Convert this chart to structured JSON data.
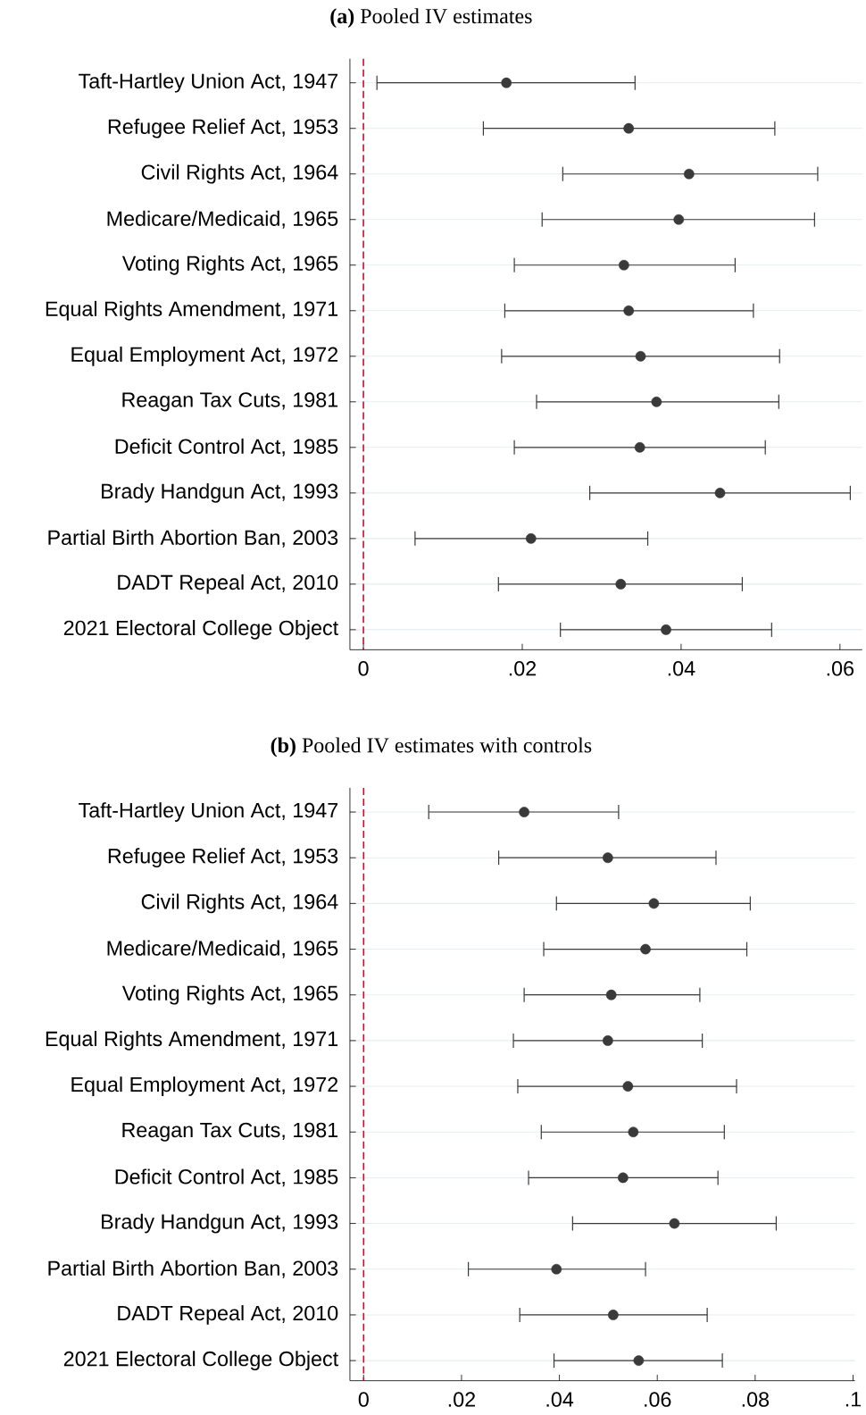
{
  "chart_data": [
    {
      "type": "scatter",
      "orientation": "horizontal",
      "title": "**(a)** Pooled IV estimates",
      "categories": [
        "Taft-Hartley Union Act, 1947",
        "Refugee Relief Act, 1953",
        "Civil Rights Act, 1964",
        "Medicare/Medicaid, 1965",
        "Voting Rights Act, 1965",
        "Equal Rights Amendment, 1971",
        "Equal Employment Act, 1972",
        "Reagan Tax Cuts, 1981",
        "Deficit Control Act, 1985",
        "Brady Handgun Act, 1993",
        "Partial Birth Abortion Ban, 2003",
        "DADT Repeal Act, 2010",
        "2021 Electoral College Object"
      ],
      "values": [
        0.018,
        0.0334,
        0.041,
        0.0397,
        0.0328,
        0.0334,
        0.0349,
        0.0369,
        0.0348,
        0.0449,
        0.0211,
        0.0324,
        0.0381
      ],
      "errors": [
        [
          0.0017,
          0.0342
        ],
        [
          0.0151,
          0.0518
        ],
        [
          0.0251,
          0.0572
        ],
        [
          0.0225,
          0.0568
        ],
        [
          0.019,
          0.0468
        ],
        [
          0.0178,
          0.0491
        ],
        [
          0.0174,
          0.0524
        ],
        [
          0.0218,
          0.0523
        ],
        [
          0.019,
          0.0506
        ],
        [
          0.0285,
          0.0613
        ],
        [
          0.0065,
          0.0358
        ],
        [
          0.017,
          0.0477
        ],
        [
          0.0248,
          0.0514
        ]
      ],
      "color": "#3a3a3a",
      "grid": "y",
      "xlim": [
        -0.0017,
        0.0628
      ],
      "xticks": [
        0,
        {
          "value": 0.02,
          "label": ".02"
        },
        {
          "value": 0.04,
          "label": ".04"
        },
        {
          "value": 0.06,
          "label": ".06"
        }
      ],
      "ref_lines": [
        {
          "axis": "x",
          "value": 0,
          "color": "#c8102e",
          "line_style": "dashed"
        }
      ]
    },
    {
      "type": "scatter",
      "orientation": "horizontal",
      "title": "**(b)** Pooled IV estimates with controls",
      "categories": [
        "Taft-Hartley Union Act, 1947",
        "Refugee Relief Act, 1953",
        "Civil Rights Act, 1964",
        "Medicare/Medicaid, 1965",
        "Voting Rights Act, 1965",
        "Equal Rights Amendment, 1971",
        "Equal Employment Act, 1972",
        "Reagan Tax Cuts, 1981",
        "Deficit Control Act, 1985",
        "Brady Handgun Act, 1993",
        "Partial Birth Abortion Ban, 2003",
        "DADT Repeal Act, 2010",
        "2021 Electoral College Object"
      ],
      "values": [
        0.0328,
        0.0499,
        0.0593,
        0.0576,
        0.0506,
        0.0499,
        0.054,
        0.0551,
        0.053,
        0.0635,
        0.0394,
        0.051,
        0.0562
      ],
      "errors": [
        [
          0.0133,
          0.0521
        ],
        [
          0.0276,
          0.072
        ],
        [
          0.0394,
          0.079
        ],
        [
          0.0368,
          0.0783
        ],
        [
          0.0328,
          0.0687
        ],
        [
          0.0306,
          0.0692
        ],
        [
          0.0315,
          0.0762
        ],
        [
          0.0363,
          0.0737
        ],
        [
          0.0337,
          0.0724
        ],
        [
          0.0427,
          0.0843
        ],
        [
          0.0214,
          0.0576
        ],
        [
          0.0319,
          0.0702
        ],
        [
          0.0389,
          0.0733
        ]
      ],
      "color": "#3a3a3a",
      "grid": "y",
      "xlim": [
        -0.0028,
        0.1004
      ],
      "xticks": [
        0,
        {
          "value": 0.02,
          "label": ".02"
        },
        {
          "value": 0.04,
          "label": ".04"
        },
        {
          "value": 0.06,
          "label": ".06"
        },
        {
          "value": 0.08,
          "label": ".08"
        },
        {
          "value": 0.1,
          "label": ".1"
        }
      ],
      "ref_lines": [
        {
          "axis": "x",
          "value": 0,
          "color": "#c8102e",
          "line_style": "dashed"
        }
      ]
    }
  ]
}
